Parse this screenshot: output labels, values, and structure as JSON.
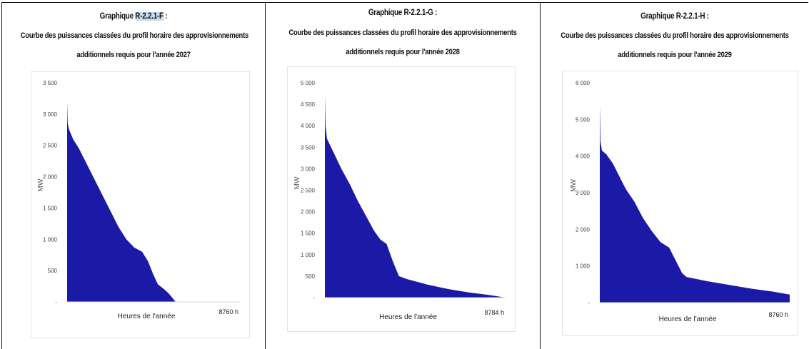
{
  "charts": [
    {
      "title_prefix": "Graphique ",
      "title_id": "R-2.2.1-F",
      "title_suffix": " :",
      "subtitle_line1": "Courbe des puissances classées du profil horaire des approvisionnements",
      "subtitle_line2": "additionnels requis pour l'année 2027"
    },
    {
      "title_prefix": "Graphique ",
      "title_id": "R-2.2.1-G",
      "title_suffix": " :",
      "subtitle_line1": "Courbe des puissances classées du profil horaire des approvisionnements",
      "subtitle_line2": "additionnels requis pour l'année 2028"
    },
    {
      "title_prefix": "Graphique ",
      "title_id": "R-2.2.1-H",
      "title_suffix": " :",
      "subtitle_line1": "Courbe des puissances classées du profil horaire des approvisionnements",
      "subtitle_line2": "additionnels requis pour l'année 2029"
    }
  ],
  "chart_data": [
    {
      "type": "area",
      "title": "Courbe des puissances classées du profil horaire des approvisionnements additionnels requis pour l'année 2027",
      "xlabel": "Heures de l'année",
      "ylabel": "MW",
      "x_end_label": "8760 h",
      "ylim": [
        0,
        3500
      ],
      "xlim": [
        0,
        8760
      ],
      "yticks": [
        0,
        500,
        1000,
        1500,
        2000,
        2500,
        3000,
        3500
      ],
      "ytick_labels": [
        "-",
        "500",
        "1 000",
        "1 500",
        "2 000",
        "2 500",
        "3 000",
        "3 500"
      ],
      "color": "#1a1aa6",
      "grid": false,
      "x": [
        0,
        30,
        100,
        300,
        600,
        1000,
        1400,
        1800,
        2200,
        2600,
        3000,
        3400,
        3800,
        4100,
        4350,
        4600,
        4850,
        5100,
        5300,
        5500,
        6000,
        8760
      ],
      "y": [
        3200,
        2850,
        2750,
        2600,
        2450,
        2200,
        1950,
        1700,
        1450,
        1200,
        1000,
        870,
        800,
        650,
        450,
        280,
        220,
        150,
        80,
        0,
        0,
        0
      ]
    },
    {
      "type": "area",
      "title": "Courbe des puissances classées du profil horaire des approvisionnements additionnels requis pour l'année 2028",
      "xlabel": "Heures de l'année",
      "ylabel": "MW",
      "x_end_label": "8784 h",
      "ylim": [
        0,
        5000
      ],
      "xlim": [
        0,
        8784
      ],
      "yticks": [
        0,
        500,
        1000,
        1500,
        2000,
        2500,
        3000,
        3500,
        4000,
        4500,
        5000
      ],
      "ytick_labels": [
        "-",
        "500",
        "1 000",
        "1 500",
        "2 000",
        "2 500",
        "3 000",
        "3 500",
        "4 000",
        "4 500",
        "5 000"
      ],
      "color": "#1a1aa6",
      "grid": false,
      "x": [
        0,
        30,
        100,
        300,
        500,
        800,
        1200,
        1600,
        2000,
        2400,
        2700,
        3000,
        3300,
        3600,
        4000,
        5000,
        6000,
        7000,
        8000,
        8784
      ],
      "y": [
        4700,
        4000,
        3700,
        3500,
        3300,
        3000,
        2650,
        2250,
        1900,
        1550,
        1350,
        1250,
        850,
        500,
        430,
        300,
        200,
        120,
        60,
        0
      ]
    },
    {
      "type": "area",
      "title": "Courbe des puissances classées du profil horaire des approvisionnements additionnels requis pour l'année 2029",
      "xlabel": "Heures de l'année",
      "ylabel": "MW",
      "x_end_label": "8760 h",
      "ylim": [
        0,
        6000
      ],
      "xlim": [
        0,
        8760
      ],
      "yticks": [
        0,
        1000,
        2000,
        3000,
        4000,
        5000,
        6000
      ],
      "ytick_labels": [
        "-",
        "1 000",
        "2 000",
        "3 000",
        "4 000",
        "5 000",
        "6 000"
      ],
      "color": "#1a1aa6",
      "grid": false,
      "x": [
        0,
        30,
        100,
        300,
        600,
        900,
        1200,
        1600,
        2000,
        2400,
        2800,
        3200,
        3500,
        3800,
        4000,
        5000,
        6000,
        7000,
        8000,
        8760
      ],
      "y": [
        5400,
        4400,
        4150,
        4050,
        3800,
        3450,
        3100,
        2750,
        2300,
        1950,
        1650,
        1500,
        1150,
        800,
        700,
        580,
        480,
        380,
        300,
        220
      ]
    }
  ]
}
